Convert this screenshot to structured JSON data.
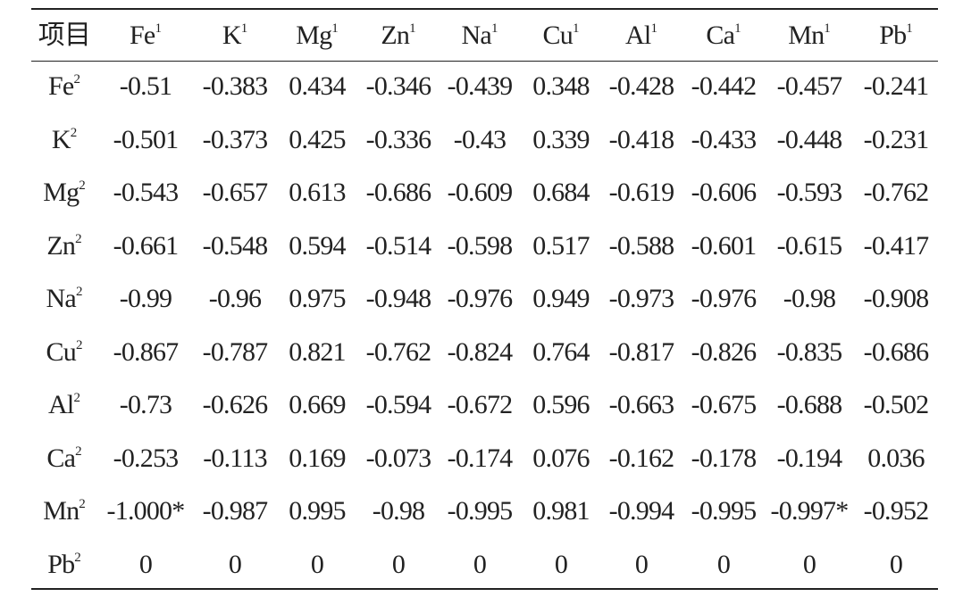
{
  "table": {
    "header": [
      {
        "base": "项目"
      },
      {
        "base": "Fe",
        "sup": "1"
      },
      {
        "base": "K",
        "sup": "1"
      },
      {
        "base": "Mg",
        "sup": "1"
      },
      {
        "base": "Zn",
        "sup": "1"
      },
      {
        "base": "Na",
        "sup": "1"
      },
      {
        "base": "Cu",
        "sup": "1"
      },
      {
        "base": "Al",
        "sup": "1"
      },
      {
        "base": "Ca",
        "sup": "1"
      },
      {
        "base": "Mn",
        "sup": "1"
      },
      {
        "base": "Pb",
        "sup": "1"
      }
    ],
    "rows": [
      {
        "label": {
          "base": "Fe",
          "sup": "2"
        },
        "cells": [
          "-0.51",
          "-0.383",
          "0.434",
          "-0.346",
          "-0.439",
          "0.348",
          "-0.428",
          "-0.442",
          "-0.457",
          "-0.241"
        ]
      },
      {
        "label": {
          "base": "K",
          "sup": "2"
        },
        "cells": [
          "-0.501",
          "-0.373",
          "0.425",
          "-0.336",
          "-0.43",
          "0.339",
          "-0.418",
          "-0.433",
          "-0.448",
          "-0.231"
        ]
      },
      {
        "label": {
          "base": "Mg",
          "sup": "2"
        },
        "cells": [
          "-0.543",
          "-0.657",
          "0.613",
          "-0.686",
          "-0.609",
          "0.684",
          "-0.619",
          "-0.606",
          "-0.593",
          "-0.762"
        ]
      },
      {
        "label": {
          "base": "Zn",
          "sup": "2"
        },
        "cells": [
          "-0.661",
          "-0.548",
          "0.594",
          "-0.514",
          "-0.598",
          "0.517",
          "-0.588",
          "-0.601",
          "-0.615",
          "-0.417"
        ]
      },
      {
        "label": {
          "base": "Na",
          "sup": "2"
        },
        "cells": [
          "-0.99",
          "-0.96",
          "0.975",
          "-0.948",
          "-0.976",
          "0.949",
          "-0.973",
          "-0.976",
          "-0.98",
          "-0.908"
        ]
      },
      {
        "label": {
          "base": "Cu",
          "sup": "2"
        },
        "cells": [
          "-0.867",
          "-0.787",
          "0.821",
          "-0.762",
          "-0.824",
          "0.764",
          "-0.817",
          "-0.826",
          "-0.835",
          "-0.686"
        ]
      },
      {
        "label": {
          "base": "Al",
          "sup": "2"
        },
        "cells": [
          "-0.73",
          "-0.626",
          "0.669",
          "-0.594",
          "-0.672",
          "0.596",
          "-0.663",
          "-0.675",
          "-0.688",
          "-0.502"
        ]
      },
      {
        "label": {
          "base": "Ca",
          "sup": "2"
        },
        "cells": [
          "-0.253",
          "-0.113",
          "0.169",
          "-0.073",
          "-0.174",
          "0.076",
          "-0.162",
          "-0.178",
          "-0.194",
          "0.036"
        ]
      },
      {
        "label": {
          "base": "Mn",
          "sup": "2"
        },
        "cells": [
          "-1.000*",
          "-0.987",
          "0.995",
          "-0.98",
          "-0.995",
          "0.981",
          "-0.994",
          "-0.995",
          "-0.997*",
          "-0.952"
        ]
      },
      {
        "label": {
          "base": "Pb",
          "sup": "2"
        },
        "cells": [
          "0",
          "0",
          "0",
          "0",
          "0",
          "0",
          "0",
          "0",
          "0",
          "0"
        ]
      }
    ]
  }
}
